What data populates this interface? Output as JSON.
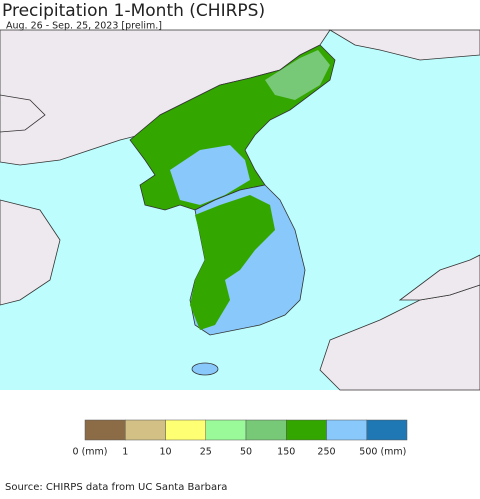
{
  "header": {
    "title": "Precipitation 1-Month (CHIRPS)",
    "subtitle": "Aug. 26 - Sep. 25, 2023 [prelim.]"
  },
  "legend": {
    "items": [
      {
        "label": "0 (mm)",
        "color": "#8b6c46"
      },
      {
        "label": "1",
        "color": "#d2c084"
      },
      {
        "label": "10",
        "color": "#ffff73"
      },
      {
        "label": "25",
        "color": "#9afa9a"
      },
      {
        "label": "50",
        "color": "#77c977"
      },
      {
        "label": "150",
        "color": "#33a600"
      },
      {
        "label": "250",
        "color": "#88c8fa"
      },
      {
        "label": "500 (mm)",
        "color": "#1f78b4"
      }
    ]
  },
  "source": "Source: CHIRPS data from UC Santa Barbara"
}
